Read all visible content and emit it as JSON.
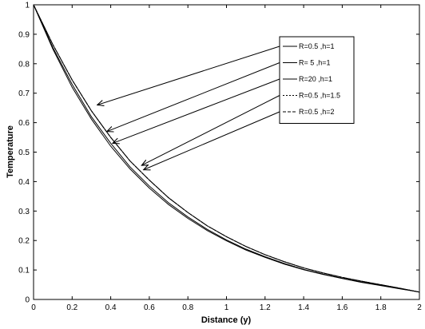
{
  "chart_data": {
    "type": "line",
    "title": "",
    "xlabel": "Distance (y)",
    "ylabel": "Temperature",
    "xlim": [
      0,
      2
    ],
    "ylim": [
      0,
      1
    ],
    "x_ticks": [
      "0",
      "0.2",
      "0.4",
      "0.6",
      "0.8",
      "1",
      "1.2",
      "1.4",
      "1.6",
      "1.8",
      "2"
    ],
    "y_ticks": [
      "0",
      "0.1",
      "0.2",
      "0.3",
      "0.4",
      "0.5",
      "0.6",
      "0.7",
      "0.8",
      "0.9",
      "1"
    ],
    "grid": false,
    "legend_position": "top-right",
    "x": [
      0,
      0.1,
      0.2,
      0.3,
      0.4,
      0.5,
      0.6,
      0.7,
      0.8,
      0.9,
      1.0,
      1.1,
      1.2,
      1.3,
      1.4,
      1.5,
      1.6,
      1.7,
      1.8,
      1.9,
      2.0
    ],
    "series": [
      {
        "name": "R=0.5 ,h=1",
        "style": "solid",
        "values": [
          1,
          0.865,
          0.745,
          0.64,
          0.55,
          0.47,
          0.405,
          0.345,
          0.295,
          0.25,
          0.213,
          0.18,
          0.152,
          0.128,
          0.107,
          0.09,
          0.075,
          0.062,
          0.05,
          0.038,
          0.025
        ]
      },
      {
        "name": "R= 5 ,h=1",
        "style": "solid",
        "values": [
          1,
          0.855,
          0.73,
          0.62,
          0.53,
          0.45,
          0.385,
          0.328,
          0.28,
          0.238,
          0.202,
          0.171,
          0.145,
          0.122,
          0.102,
          0.086,
          0.072,
          0.059,
          0.048,
          0.037,
          0.025
        ]
      },
      {
        "name": "R=20 ,h=1",
        "style": "solid",
        "values": [
          1,
          0.85,
          0.72,
          0.612,
          0.52,
          0.443,
          0.378,
          0.322,
          0.275,
          0.234,
          0.199,
          0.168,
          0.143,
          0.12,
          0.101,
          0.085,
          0.071,
          0.058,
          0.047,
          0.036,
          0.025
        ]
      },
      {
        "name": "R=0.5 ,h=1.5",
        "style": "dotted",
        "values": [
          1,
          0.865,
          0.745,
          0.64,
          0.55,
          0.47,
          0.405,
          0.345,
          0.295,
          0.25,
          0.213,
          0.18,
          0.152,
          0.128,
          0.107,
          0.09,
          0.075,
          0.062,
          0.05,
          0.038,
          0.025
        ]
      },
      {
        "name": "R=0.5 ,h=2",
        "style": "dashed",
        "values": [
          1,
          0.865,
          0.745,
          0.64,
          0.55,
          0.47,
          0.405,
          0.345,
          0.295,
          0.25,
          0.213,
          0.18,
          0.152,
          0.128,
          0.107,
          0.09,
          0.075,
          0.062,
          0.05,
          0.038,
          0.025
        ]
      }
    ],
    "annotations": [
      {
        "series": "R=0.5 ,h=1",
        "x": 0.33,
        "y": 0.66
      },
      {
        "series": "R= 5 ,h=1",
        "x": 0.38,
        "y": 0.57
      },
      {
        "series": "R=20 ,h=1",
        "x": 0.41,
        "y": 0.53
      },
      {
        "series": "R=0.5 ,h=1.5",
        "x": 0.56,
        "y": 0.455
      },
      {
        "series": "R=0.5 ,h=2",
        "x": 0.57,
        "y": 0.44
      }
    ]
  }
}
